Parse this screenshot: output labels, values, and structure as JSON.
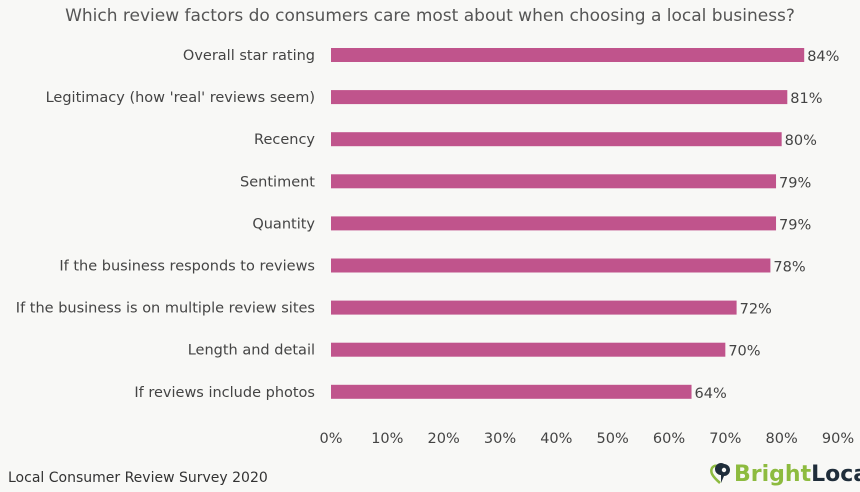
{
  "chart_data": {
    "type": "bar",
    "orientation": "horizontal",
    "title": "Which review factors do consumers care most about when choosing a local business?",
    "categories": [
      "Overall star rating",
      "Legitimacy (how 'real' reviews seem)",
      "Recency",
      "Sentiment",
      "Quantity",
      "If the business responds to reviews",
      "If the business is on multiple review sites",
      "Length and detail",
      "If reviews include photos"
    ],
    "values": [
      84,
      81,
      80,
      79,
      79,
      78,
      72,
      70,
      64
    ],
    "value_labels": [
      "84%",
      "81%",
      "80%",
      "79%",
      "79%",
      "78%",
      "72%",
      "70%",
      "64%"
    ],
    "xlim": [
      0,
      90
    ],
    "xticks": [
      "0%",
      "10%",
      "20%",
      "30%",
      "40%",
      "50%",
      "60%",
      "70%",
      "80%",
      "90%"
    ],
    "xlabel": "",
    "ylabel": "",
    "grid": false,
    "bar_color": "#c0548c"
  },
  "footer": {
    "source": "Local Consumer Review Survey 2020",
    "logo_bright": "Bright",
    "logo_local": "Local"
  }
}
